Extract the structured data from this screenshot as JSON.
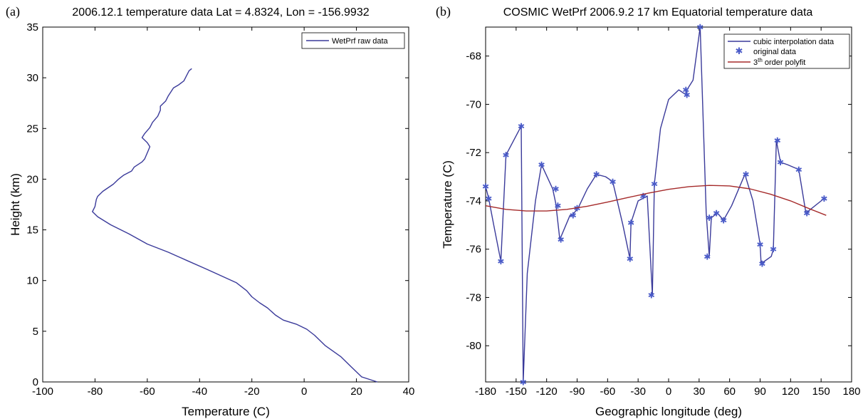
{
  "colors": {
    "line": "#3a3a9a",
    "marker": "#4a5bc8",
    "fit": "#a52a2a",
    "axes": "#000000"
  },
  "panels": [
    {
      "label": "(a)"
    },
    {
      "label": "(b)"
    }
  ],
  "chart_data": [
    {
      "type": "line",
      "title": "2006.12.1 temperature data Lat = 4.8324, Lon = -156.9932",
      "xlabel": "Temperature (C)",
      "ylabel": "Height (km)",
      "xlim": [
        -100,
        40
      ],
      "ylim": [
        0,
        35
      ],
      "xticks": [
        -100,
        -80,
        -60,
        -40,
        -20,
        0,
        20,
        40
      ],
      "yticks": [
        0,
        5,
        10,
        15,
        20,
        25,
        30,
        35
      ],
      "xtick_labels": [
        "-100",
        "-80",
        "-60",
        "-40",
        "-20",
        "0",
        "20",
        "40"
      ],
      "ytick_labels": [
        "0",
        "5",
        "10",
        "15",
        "20",
        "25",
        "30",
        "35"
      ],
      "legend": {
        "position": "top-right",
        "entries": [
          "WetPrf raw data"
        ]
      },
      "series": [
        {
          "name": "WetPrf raw data",
          "x": [
            28,
            22,
            18,
            14,
            8,
            4,
            1,
            -3,
            -8,
            -11,
            -14,
            -17,
            -20,
            -22,
            -26,
            -32,
            -38,
            -45,
            -52,
            -60,
            -67,
            -74,
            -79,
            -81,
            -80,
            -79.5,
            -79,
            -77,
            -73,
            -71,
            -69,
            -66,
            -65,
            -62,
            -61,
            -60,
            -59,
            -60,
            -62,
            -61,
            -59,
            -58,
            -56,
            -55,
            -55,
            -53,
            -52,
            -51,
            -50,
            -48,
            -46,
            -45,
            -44,
            -43
          ],
          "y": [
            0,
            0.5,
            1.5,
            2.5,
            3.6,
            4.6,
            5.2,
            5.7,
            6.1,
            6.6,
            7.3,
            7.8,
            8.4,
            9.0,
            9.8,
            10.5,
            11.2,
            12.0,
            12.8,
            13.6,
            14.6,
            15.5,
            16.3,
            16.8,
            17.3,
            18.0,
            18.3,
            18.8,
            19.5,
            20.0,
            20.4,
            20.8,
            21.2,
            21.7,
            22.0,
            22.6,
            23.2,
            23.6,
            24.1,
            24.5,
            25.1,
            25.6,
            26.2,
            26.8,
            27.2,
            27.7,
            28.2,
            28.6,
            29.0,
            29.3,
            29.7,
            30.2,
            30.7,
            30.9
          ]
        }
      ]
    },
    {
      "type": "line",
      "title": "COSMIC WetPrf 2006.9.2 17 km Equatorial temperature data",
      "xlabel": "Geographic longitude (deg)",
      "ylabel": "Temperature (C)",
      "xlim": [
        -180,
        180
      ],
      "ylim": [
        -81.5,
        -66.8
      ],
      "xticks": [
        -180,
        -150,
        -120,
        -90,
        -60,
        -30,
        0,
        30,
        60,
        90,
        120,
        150,
        180
      ],
      "yticks": [
        -80,
        -78,
        -76,
        -74,
        -72,
        -70,
        -68
      ],
      "xtick_labels": [
        "-180",
        "-150",
        "-120",
        "-90",
        "-60",
        "-30",
        "0",
        "30",
        "60",
        "90",
        "120",
        "150",
        "180"
      ],
      "ytick_labels": [
        "-80",
        "-78",
        "-76",
        "-74",
        "-72",
        "-70",
        "-68"
      ],
      "legend": {
        "position": "top-right",
        "entries": [
          "cubic interpolation data",
          "original data",
          "3rd order polyfit"
        ],
        "polyfit_main": "3",
        "polyfit_sup": "th",
        "polyfit_rest": " order polyfit"
      },
      "series": [
        {
          "name": "cubic interpolation data",
          "style": "line",
          "x": [
            -180,
            -177,
            -172,
            -165,
            -160,
            -145,
            -143,
            -139,
            -131,
            -125,
            -114,
            -111,
            -107,
            -97,
            -95,
            -89,
            -80,
            -71,
            -62,
            -55,
            -45,
            -38,
            -37,
            -30,
            -21,
            -16,
            -14,
            -8,
            0,
            10,
            17,
            18,
            24,
            31,
            37,
            40,
            42,
            48,
            54,
            62,
            75,
            83,
            90,
            91,
            101,
            103,
            106,
            110,
            117,
            128,
            135,
            153
          ],
          "y": [
            -73.4,
            -73.9,
            -75.0,
            -76.5,
            -72.1,
            -70.9,
            -81.5,
            -77.0,
            -74.0,
            -72.5,
            -73.5,
            -74.1,
            -75.6,
            -74.6,
            -74.6,
            -74.3,
            -73.5,
            -72.9,
            -73.0,
            -73.2,
            -75.0,
            -76.4,
            -74.9,
            -74.0,
            -73.8,
            -77.9,
            -73.3,
            -71.0,
            -69.8,
            -69.4,
            -69.6,
            -69.4,
            -69.0,
            -66.8,
            -74.5,
            -76.3,
            -74.7,
            -74.5,
            -74.8,
            -74.2,
            -72.9,
            -74.0,
            -75.8,
            -76.6,
            -76.3,
            -76.0,
            -71.5,
            -72.4,
            -72.5,
            -72.7,
            -74.5,
            -73.9
          ]
        },
        {
          "name": "original data",
          "style": "marker",
          "x": [
            -180,
            -177,
            -165,
            -160,
            -145,
            -143,
            -125,
            -111,
            -109,
            -106,
            -94,
            -90,
            -71,
            -55,
            -38,
            -37,
            -25,
            -17,
            -14,
            17,
            18,
            31,
            38,
            40,
            47,
            54,
            76,
            90,
            92,
            103,
            107,
            110,
            128,
            136,
            153
          ],
          "y": [
            -73.4,
            -73.9,
            -76.5,
            -72.1,
            -70.9,
            -81.5,
            -72.5,
            -73.5,
            -74.2,
            -75.6,
            -74.6,
            -74.3,
            -72.9,
            -73.2,
            -76.4,
            -74.9,
            -73.8,
            -77.9,
            -73.3,
            -69.4,
            -69.6,
            -66.8,
            -76.3,
            -74.7,
            -74.5,
            -74.8,
            -72.9,
            -75.8,
            -76.6,
            -76.0,
            -71.5,
            -72.4,
            -72.7,
            -74.5,
            -73.9
          ]
        },
        {
          "name": "3rd order polyfit",
          "style": "line",
          "x": [
            -180,
            -160,
            -140,
            -120,
            -100,
            -80,
            -60,
            -40,
            -20,
            0,
            20,
            40,
            60,
            80,
            100,
            120,
            140,
            155
          ],
          "y": [
            -74.2,
            -74.35,
            -74.42,
            -74.42,
            -74.35,
            -74.22,
            -74.05,
            -73.86,
            -73.68,
            -73.52,
            -73.41,
            -73.36,
            -73.38,
            -73.5,
            -73.72,
            -74.0,
            -74.35,
            -74.6
          ]
        }
      ]
    }
  ]
}
